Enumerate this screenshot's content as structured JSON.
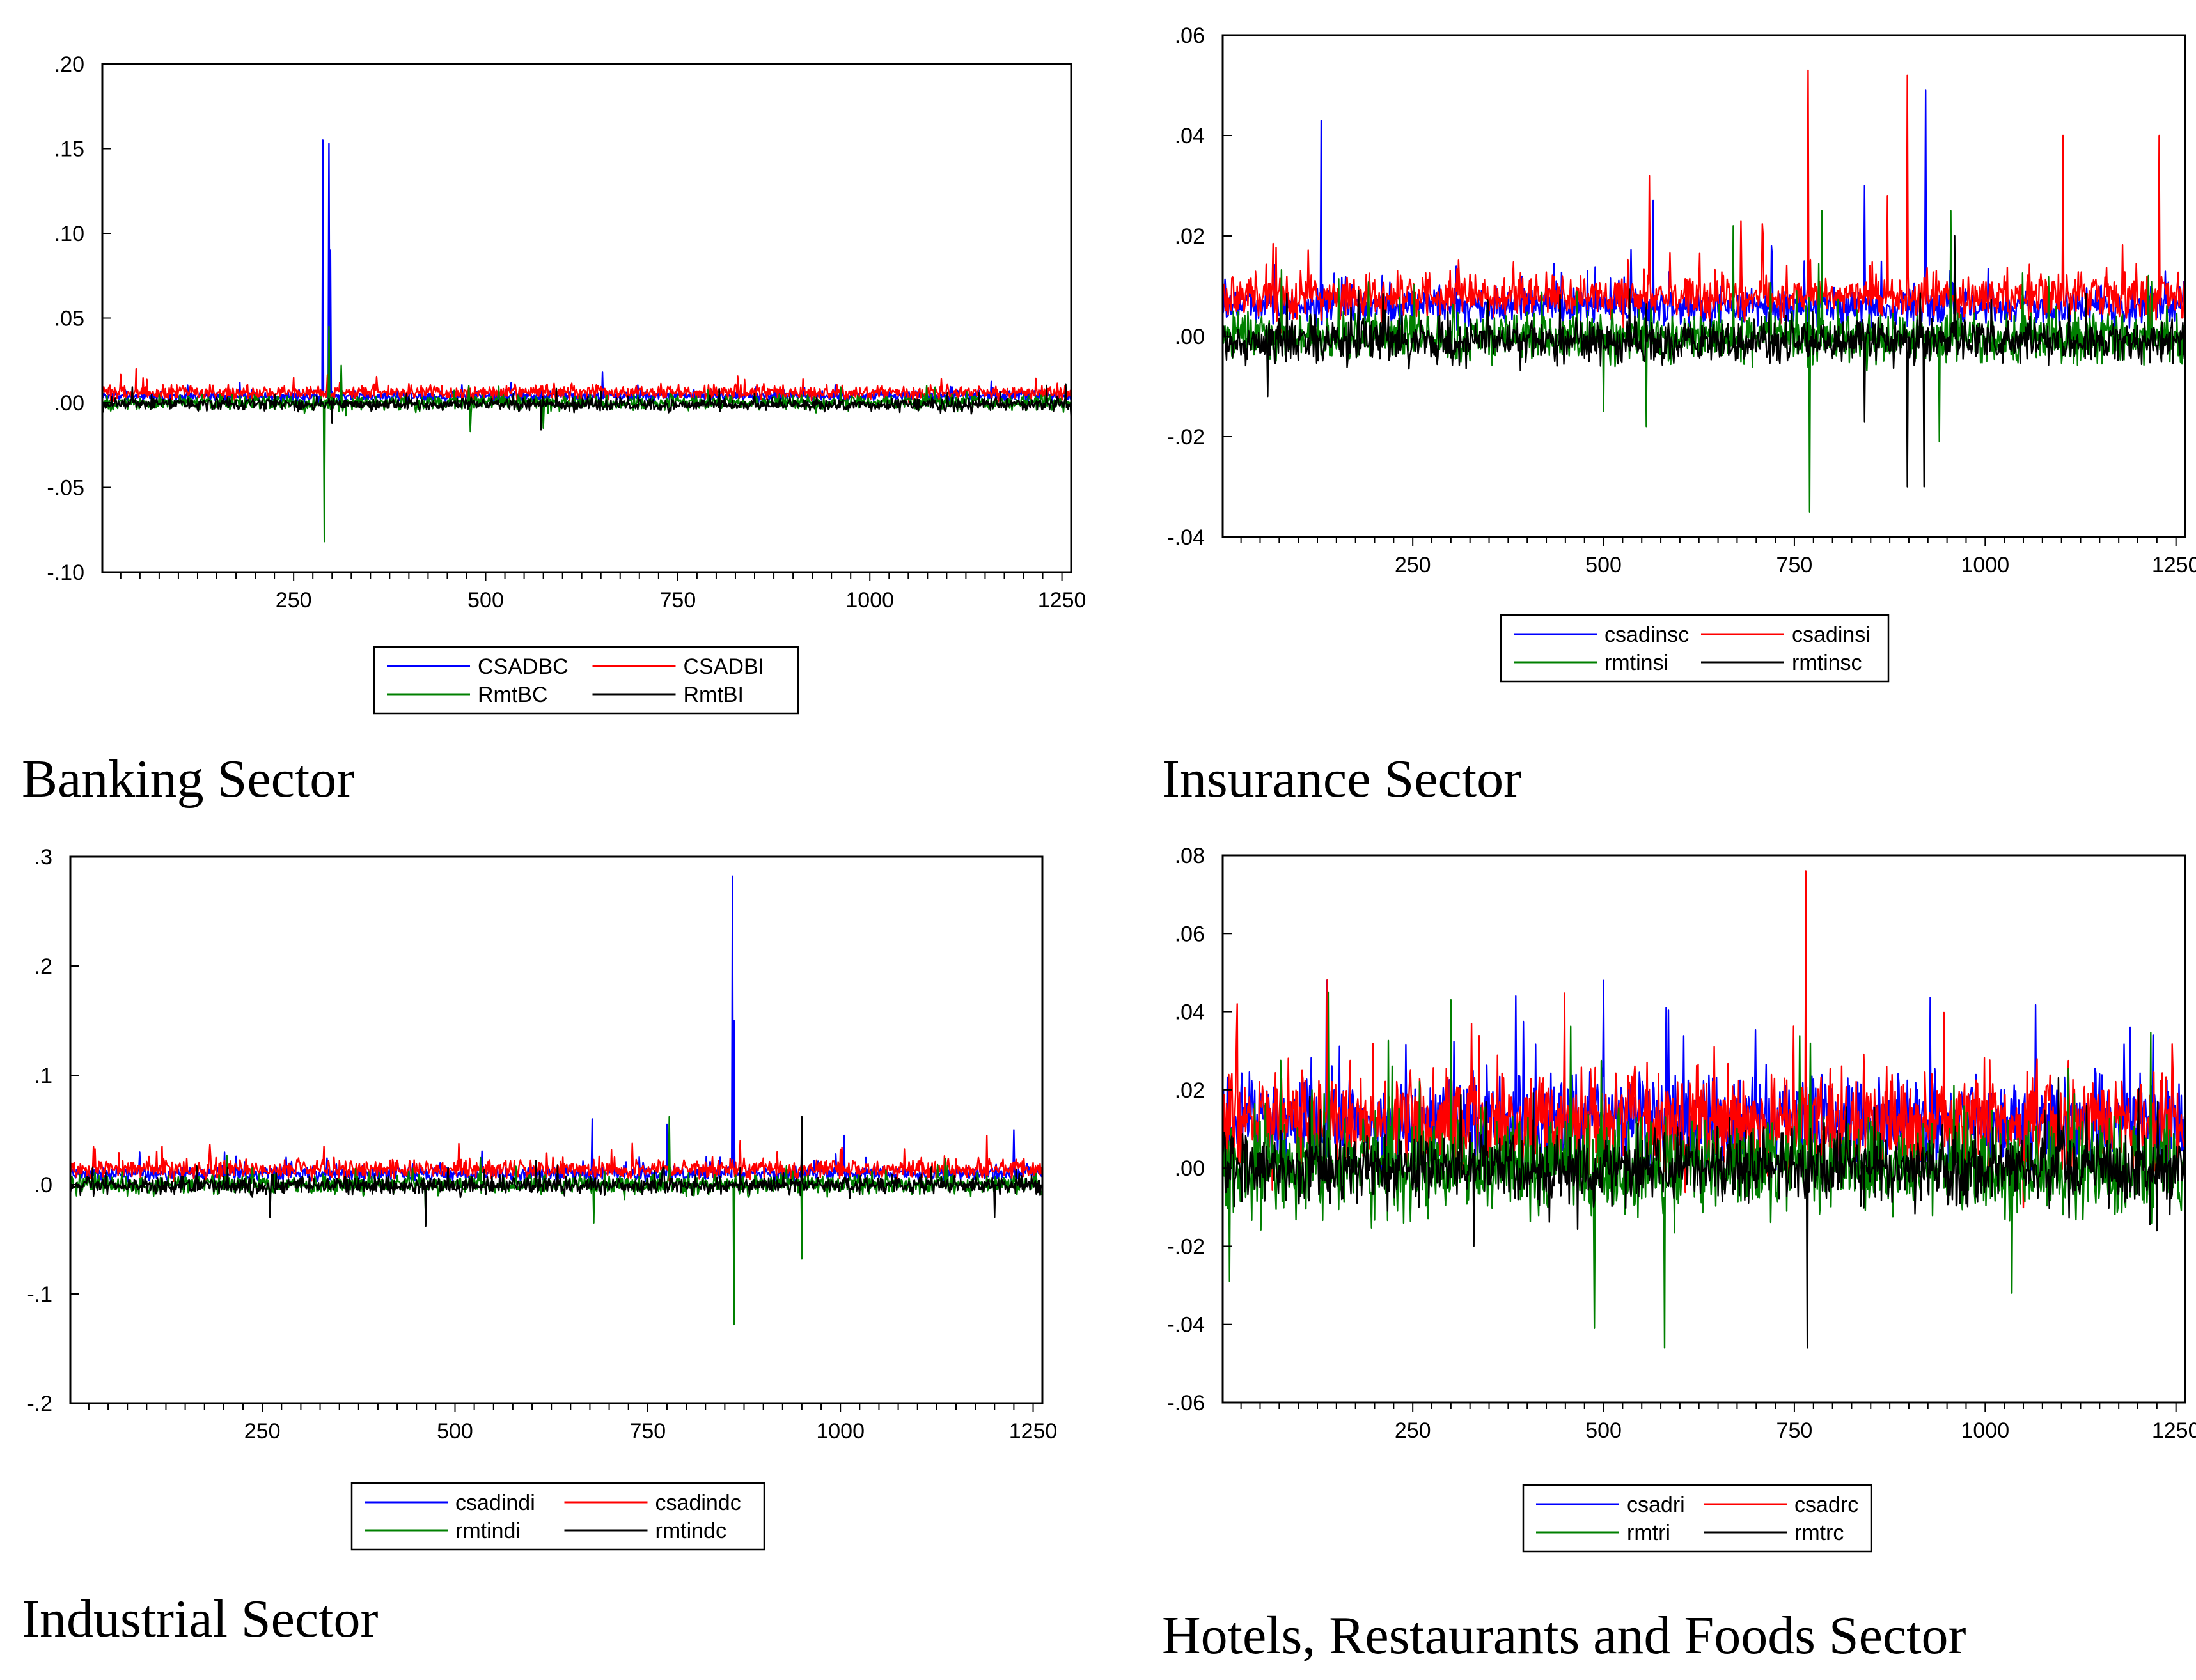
{
  "chart_data": [
    {
      "type": "line",
      "caption": "Banking Sector",
      "title": "",
      "xlabel": "",
      "ylabel": "",
      "x_ticks": [
        "250",
        "500",
        "750",
        "1000",
        "1250"
      ],
      "x_tick_values": [
        250,
        500,
        750,
        1000,
        1250
      ],
      "xlim": [
        1,
        1262
      ],
      "y_ticks": [
        ".20",
        ".15",
        ".10",
        ".05",
        ".00",
        "-.05",
        "-.10"
      ],
      "y_tick_values": [
        0.2,
        0.15,
        0.1,
        0.05,
        0.0,
        -0.05,
        -0.1
      ],
      "ylim": [
        -0.1,
        0.2
      ],
      "legend": "bottom-center",
      "series": [
        {
          "name": "CSADBC",
          "color": "#0000ff",
          "base": 0.004,
          "noise": 0.0022,
          "spikes": [
            [
              288,
              0.155
            ],
            [
              296,
              0.153
            ],
            [
              298,
              0.09
            ],
            [
              652,
              0.018
            ],
            [
              180,
              0.012
            ]
          ]
        },
        {
          "name": "CSADBI",
          "color": "#ff0000",
          "base": 0.006,
          "noise": 0.003,
          "spikes": [
            [
              45,
              0.02
            ],
            [
              310,
              0.012
            ],
            [
              580,
              0.011
            ],
            [
              1010,
              0.01
            ]
          ]
        },
        {
          "name": "RmtBC",
          "color": "#008000",
          "base": 0.0,
          "noise": 0.003,
          "spikes": [
            [
              290,
              -0.082
            ],
            [
              296,
              0.045
            ],
            [
              312,
              0.022
            ],
            [
              478,
              0.01
            ],
            [
              480,
              -0.017
            ],
            [
              575,
              -0.015
            ]
          ]
        },
        {
          "name": "RmtBI",
          "color": "#000000",
          "base": -0.001,
          "noise": 0.0025,
          "spikes": [
            [
              572,
              -0.016
            ],
            [
              300,
              -0.012
            ],
            [
              1262,
              -0.01
            ]
          ]
        }
      ]
    },
    {
      "type": "line",
      "caption": "Insurance Sector",
      "title": "",
      "xlabel": "",
      "ylabel": "",
      "x_ticks": [
        "250",
        "500",
        "750",
        "1000",
        "1250"
      ],
      "x_tick_values": [
        250,
        500,
        750,
        1000,
        1250
      ],
      "xlim": [
        1,
        1262
      ],
      "y_ticks": [
        ".06",
        ".04",
        ".02",
        ".00",
        "-.02",
        "-.04"
      ],
      "y_tick_values": [
        0.06,
        0.04,
        0.02,
        0.0,
        -0.02,
        -0.04
      ],
      "ylim": [
        -0.04,
        0.06
      ],
      "legend": "bottom-center",
      "series": [
        {
          "name": "csadinsc",
          "color": "#0000ff",
          "base": 0.006,
          "noise": 0.0025,
          "spikes": [
            [
              130,
              0.043
            ],
            [
              565,
              0.027
            ],
            [
              842,
              0.03
            ],
            [
              922,
              0.049
            ],
            [
              720,
              0.018
            ]
          ]
        },
        {
          "name": "csadinsi",
          "color": "#ff0000",
          "base": 0.008,
          "noise": 0.003,
          "spikes": [
            [
              560,
              0.032
            ],
            [
              768,
              0.053
            ],
            [
              872,
              0.028
            ],
            [
              898,
              0.052
            ],
            [
              1102,
              0.04
            ],
            [
              1228,
              0.04
            ],
            [
              680,
              0.023
            ]
          ]
        },
        {
          "name": "rmtinsi",
          "color": "#008000",
          "base": 0.0,
          "noise": 0.0035,
          "spikes": [
            [
              770,
              -0.035
            ],
            [
              556,
              -0.018
            ],
            [
              500,
              -0.015
            ],
            [
              786,
              0.025
            ],
            [
              955,
              0.025
            ],
            [
              940,
              -0.021
            ],
            [
              670,
              0.022
            ]
          ]
        },
        {
          "name": "rmtinsc",
          "color": "#000000",
          "base": -0.001,
          "noise": 0.003,
          "spikes": [
            [
              898,
              -0.03
            ],
            [
              920,
              -0.03
            ],
            [
              842,
              -0.017
            ],
            [
              60,
              -0.012
            ],
            [
              960,
              0.02
            ]
          ]
        }
      ]
    },
    {
      "type": "line",
      "caption": "Industrial Sector",
      "title": "",
      "xlabel": "",
      "ylabel": "",
      "x_ticks": [
        "250",
        "500",
        "750",
        "1000",
        "1250"
      ],
      "x_tick_values": [
        250,
        500,
        750,
        1000,
        1250
      ],
      "xlim": [
        1,
        1262
      ],
      "y_ticks": [
        ".3",
        ".2",
        ".1",
        ".0",
        "-.1",
        "-.2"
      ],
      "y_tick_values": [
        0.3,
        0.2,
        0.1,
        0.0,
        -0.1,
        -0.2
      ],
      "ylim": [
        -0.2,
        0.3
      ],
      "legend": "bottom-center",
      "series": [
        {
          "name": "csadindi",
          "color": "#0000ff",
          "base": 0.01,
          "noise": 0.0045,
          "spikes": [
            [
              860,
              0.282
            ],
            [
              862,
              0.15
            ],
            [
              678,
              0.06
            ],
            [
              1225,
              0.05
            ],
            [
              1005,
              0.045
            ],
            [
              775,
              0.055
            ]
          ]
        },
        {
          "name": "csadindc",
          "color": "#ff0000",
          "base": 0.014,
          "noise": 0.006,
          "spikes": [
            [
              1190,
              0.045
            ],
            [
              870,
              0.04
            ],
            [
              330,
              0.035
            ],
            [
              120,
              0.035
            ]
          ]
        },
        {
          "name": "rmtindi",
          "color": "#008000",
          "base": 0.0,
          "noise": 0.006,
          "spikes": [
            [
              862,
              -0.128
            ],
            [
              950,
              -0.068
            ],
            [
              778,
              0.062
            ],
            [
              680,
              -0.035
            ],
            [
              462,
              -0.035
            ]
          ]
        },
        {
          "name": "rmtindc",
          "color": "#000000",
          "base": -0.001,
          "noise": 0.0055,
          "spikes": [
            [
              950,
              0.062
            ],
            [
              1200,
              -0.03
            ],
            [
              462,
              -0.038
            ],
            [
              260,
              -0.03
            ]
          ]
        }
      ]
    },
    {
      "type": "line",
      "caption": "Hotels, Restaurants and Foods Sector",
      "title": "",
      "xlabel": "",
      "ylabel": "",
      "x_ticks": [
        "250",
        "500",
        "750",
        "1000",
        "1250"
      ],
      "x_tick_values": [
        250,
        500,
        750,
        1000,
        1250
      ],
      "xlim": [
        1,
        1262
      ],
      "y_ticks": [
        ".08",
        ".06",
        ".04",
        ".02",
        ".00",
        "-.02",
        "-.04",
        "-.06"
      ],
      "y_tick_values": [
        0.08,
        0.06,
        0.04,
        0.02,
        0.0,
        -0.02,
        -0.04,
        -0.06
      ],
      "ylim": [
        -0.06,
        0.08
      ],
      "legend": "bottom-center",
      "series": [
        {
          "name": "csadri",
          "color": "#0000ff",
          "base": 0.012,
          "noise": 0.008,
          "spikes": [
            [
              137,
              0.048
            ],
            [
              500,
              0.048
            ],
            [
              385,
              0.044
            ],
            [
              582,
              0.041
            ],
            [
              1190,
              0.036
            ],
            [
              1220,
              0.034
            ]
          ]
        },
        {
          "name": "csadrc",
          "color": "#ff0000",
          "base": 0.012,
          "noise": 0.0085,
          "spikes": [
            [
              765,
              0.076
            ],
            [
              20,
              0.042
            ],
            [
              1265,
              0.035
            ],
            [
              645,
              0.031
            ]
          ]
        },
        {
          "name": "rmtri",
          "color": "#008000",
          "base": 0.0,
          "noise": 0.0085,
          "spikes": [
            [
              580,
              -0.046
            ],
            [
              488,
              -0.041
            ],
            [
              10,
              -0.029
            ],
            [
              1035,
              -0.032
            ],
            [
              140,
              0.045
            ],
            [
              300,
              0.043
            ]
          ]
        },
        {
          "name": "rmtrc",
          "color": "#000000",
          "base": 0.0,
          "noise": 0.006,
          "spikes": [
            [
              767,
              -0.046
            ],
            [
              1225,
              -0.016
            ],
            [
              330,
              -0.02
            ]
          ]
        }
      ]
    }
  ]
}
